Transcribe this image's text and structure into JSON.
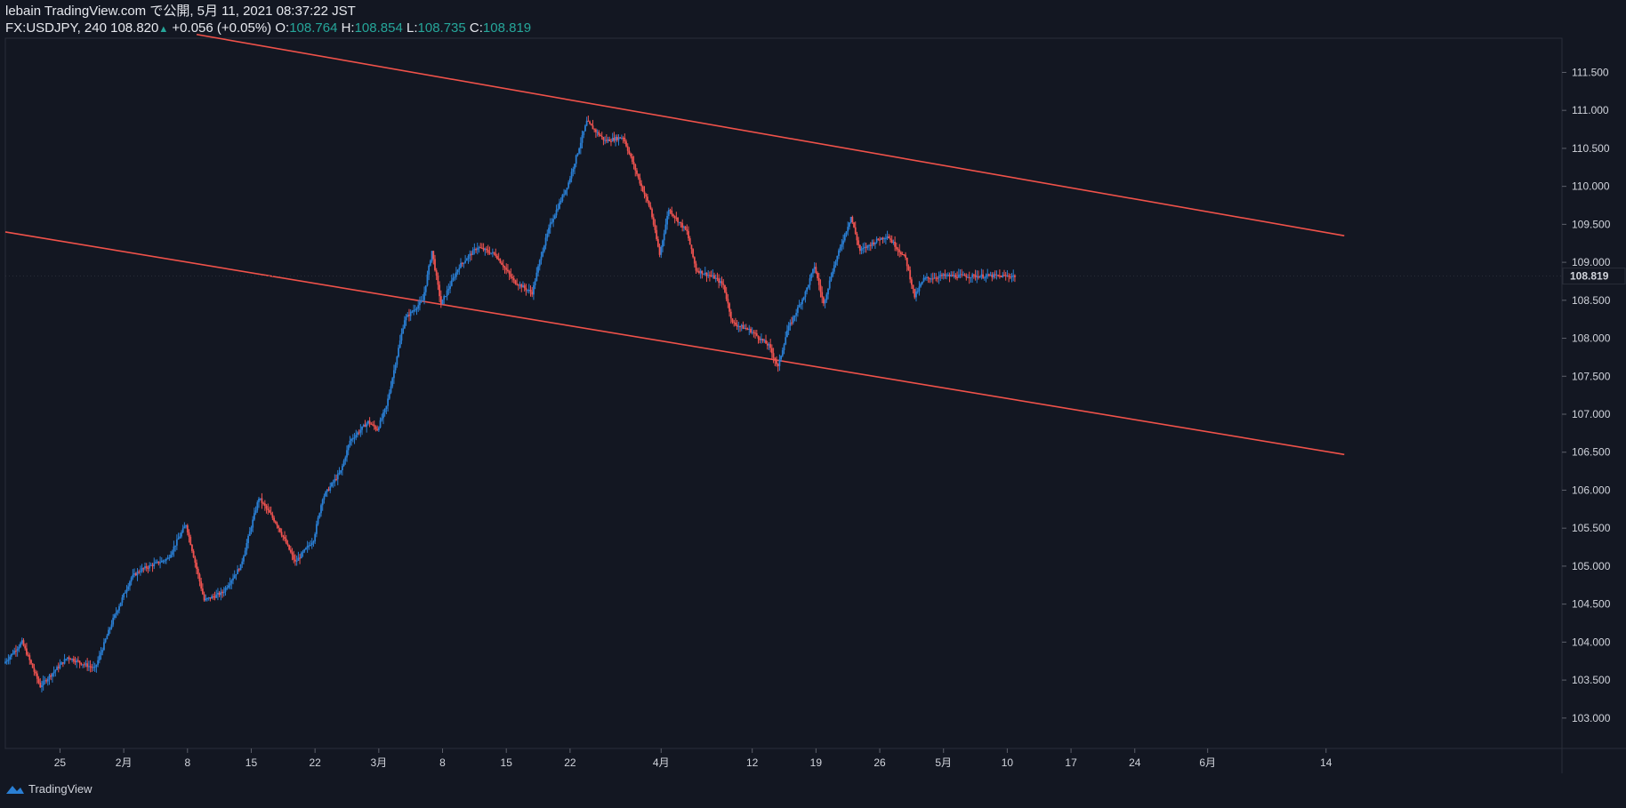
{
  "header": {
    "publisher": "lebain TradingView.com で公開, 5月 11, 2021 08:37:22 JST",
    "symbol": "FX:USDJPY, 240",
    "price": "108.820",
    "change": "+0.056 (+0.05%)",
    "o_label": "O:",
    "o_value": "108.764",
    "h_label": "H:",
    "h_value": "108.854",
    "l_label": "L:",
    "l_value": "108.735",
    "c_label": "C:",
    "c_value": "108.819"
  },
  "footer": {
    "brand": "TradingView",
    "logo_icon": "tradingview-logo-icon"
  },
  "colors": {
    "background": "#131722",
    "up": "#2a7fd4",
    "down": "#ef5350",
    "trendline": "#f0524a",
    "grid": "#2a2e39",
    "text": "#d1d4dc",
    "teal": "#26a69a"
  },
  "chart_data": {
    "type": "candlestick",
    "symbol": "FX:USDJPY",
    "interval": "240",
    "last_price": "108.819",
    "ylim": [
      102.6,
      111.95
    ],
    "x_ticks": [
      "25",
      "2月",
      "8",
      "15",
      "22",
      "3月",
      "8",
      "15",
      "22",
      "4月",
      "12",
      "19",
      "26",
      "5月",
      "10",
      "17",
      "24",
      "6月",
      "14"
    ],
    "x_tick_days": [
      4,
      11,
      18,
      25,
      32,
      39,
      46,
      53,
      60,
      70,
      80,
      87,
      94,
      101,
      108,
      115,
      122,
      130,
      143
    ],
    "y_ticks": [
      "103.000",
      "103.500",
      "104.000",
      "104.500",
      "105.000",
      "105.500",
      "106.000",
      "106.500",
      "107.000",
      "107.500",
      "108.000",
      "108.500",
      "109.000",
      "109.500",
      "110.000",
      "110.500",
      "111.000",
      "111.500"
    ],
    "trendlines": [
      {
        "from": [
          19,
          112.0
        ],
        "to": [
          145,
          109.35
        ]
      },
      {
        "from": [
          -2,
          109.4
        ],
        "to": [
          145,
          106.47
        ]
      }
    ],
    "path_days": [
      -2,
      0,
      2,
      3,
      5,
      8,
      10,
      12,
      13,
      16,
      18,
      20,
      22,
      24,
      25,
      26,
      28,
      30,
      32,
      33,
      35,
      36,
      38,
      39,
      40,
      42,
      44,
      45,
      46,
      47,
      48,
      50,
      52,
      54,
      56,
      57,
      58,
      60,
      62,
      64,
      66,
      68,
      69,
      70,
      71,
      73,
      74,
      76,
      77,
      78,
      80,
      81,
      82,
      83,
      84,
      86,
      87,
      88,
      89,
      91,
      92,
      94,
      95,
      97,
      98,
      99,
      100,
      101,
      102,
      103,
      105,
      106,
      107,
      108,
      109
    ],
    "path_prices": [
      103.72,
      104.0,
      103.42,
      103.55,
      103.8,
      103.65,
      104.3,
      104.85,
      104.95,
      105.1,
      105.55,
      104.55,
      104.65,
      105.0,
      105.45,
      105.9,
      105.55,
      105.05,
      105.35,
      105.9,
      106.25,
      106.65,
      106.9,
      106.8,
      107.1,
      108.25,
      108.5,
      109.15,
      108.45,
      108.7,
      108.95,
      109.2,
      109.1,
      108.75,
      108.6,
      109.1,
      109.5,
      110.05,
      110.85,
      110.6,
      110.65,
      110.0,
      109.7,
      109.1,
      109.7,
      109.4,
      108.9,
      108.8,
      108.7,
      108.2,
      108.1,
      108.0,
      107.9,
      107.62,
      108.1,
      108.6,
      108.95,
      108.45,
      108.9,
      109.6,
      109.15,
      109.3,
      109.35,
      109.05,
      108.55,
      108.78,
      108.8,
      108.82,
      108.82,
      108.82,
      108.82,
      108.82,
      108.82,
      108.82,
      108.819
    ]
  }
}
